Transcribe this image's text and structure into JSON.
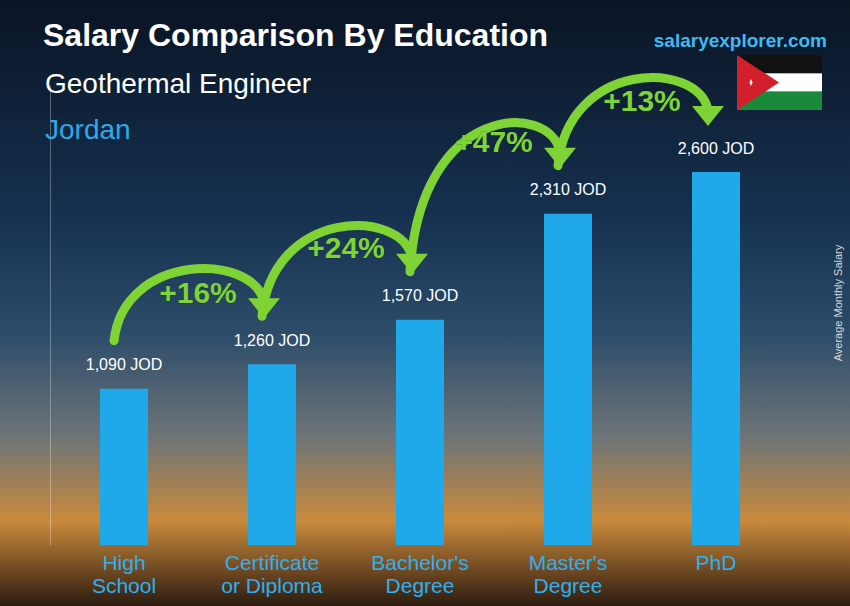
{
  "chart_data": {
    "type": "bar",
    "title": "Salary Comparison By Education",
    "subtitle": "Geothermal Engineer",
    "location": "Jordan",
    "source": "salaryexplorer.com",
    "y_label": "Average Monthly Salary",
    "categories": [
      "High School",
      "Certificate or Diploma",
      "Bachelor's Degree",
      "Master's Degree",
      "PhD"
    ],
    "values": [
      1090,
      1260,
      1570,
      2310,
      2600
    ],
    "value_labels": [
      "1,090 JOD",
      "1,260 JOD",
      "1,570 JOD",
      "2,310 JOD",
      "2,600 JOD"
    ],
    "color": "#1fa9ea",
    "ylim": [
      0,
      3200
    ],
    "grid": false,
    "data_labels": true,
    "tick_labels": "x",
    "annotations": [
      {
        "text": "+16%",
        "from": "High School",
        "to": "Certificate or Diploma"
      },
      {
        "text": "+24%",
        "from": "Certificate or Diploma",
        "to": "Bachelor's Degree"
      },
      {
        "text": "+47%",
        "from": "Bachelor's Degree",
        "to": "Master's Degree"
      },
      {
        "text": "+13%",
        "from": "Master's Degree",
        "to": "PhD"
      }
    ]
  }
}
